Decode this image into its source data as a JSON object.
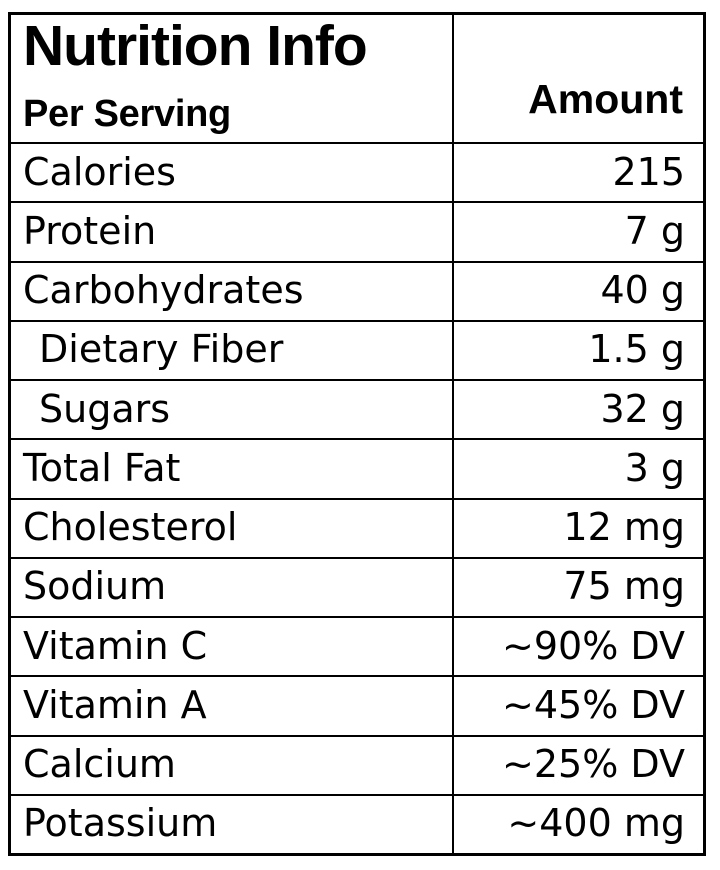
{
  "table": {
    "title": "Nutrition Info",
    "subtitle": "Per Serving",
    "amount_header": "Amount",
    "rows": [
      {
        "label": "Calories",
        "value": "215",
        "indent": false
      },
      {
        "label": "Protein",
        "value": "7 g",
        "indent": false
      },
      {
        "label": "Carbohydrates",
        "value": "40 g",
        "indent": false
      },
      {
        "label": "Dietary Fiber",
        "value": "1.5 g",
        "indent": true
      },
      {
        "label": "Sugars",
        "value": "32 g",
        "indent": true
      },
      {
        "label": "Total Fat",
        "value": "3 g",
        "indent": false
      },
      {
        "label": "Cholesterol",
        "value": "12 mg",
        "indent": false
      },
      {
        "label": "Sodium",
        "value": "75 mg",
        "indent": false
      },
      {
        "label": "Vitamin C",
        "value": "~90% DV",
        "indent": false
      },
      {
        "label": "Vitamin A",
        "value": "~45% DV",
        "indent": false
      },
      {
        "label": "Calcium",
        "value": "~25% DV",
        "indent": false
      },
      {
        "label": "Potassium",
        "value": "~400 mg",
        "indent": false
      }
    ]
  },
  "colors": {
    "text": "#000000",
    "border": "#000000",
    "background": "#ffffff"
  },
  "chart_data": {
    "type": "table",
    "title": "Nutrition Info",
    "columns": [
      "Per Serving",
      "Amount"
    ],
    "rows": [
      [
        "Calories",
        "215"
      ],
      [
        "Protein",
        "7 g"
      ],
      [
        "Carbohydrates",
        "40 g"
      ],
      [
        "Dietary Fiber",
        "1.5 g"
      ],
      [
        "Sugars",
        "32 g"
      ],
      [
        "Total Fat",
        "3 g"
      ],
      [
        "Cholesterol",
        "12 mg"
      ],
      [
        "Sodium",
        "75 mg"
      ],
      [
        "Vitamin C",
        "~90% DV"
      ],
      [
        "Vitamin A",
        "~45% DV"
      ],
      [
        "Calcium",
        "~25% DV"
      ],
      [
        "Potassium",
        "~400 mg"
      ]
    ]
  }
}
